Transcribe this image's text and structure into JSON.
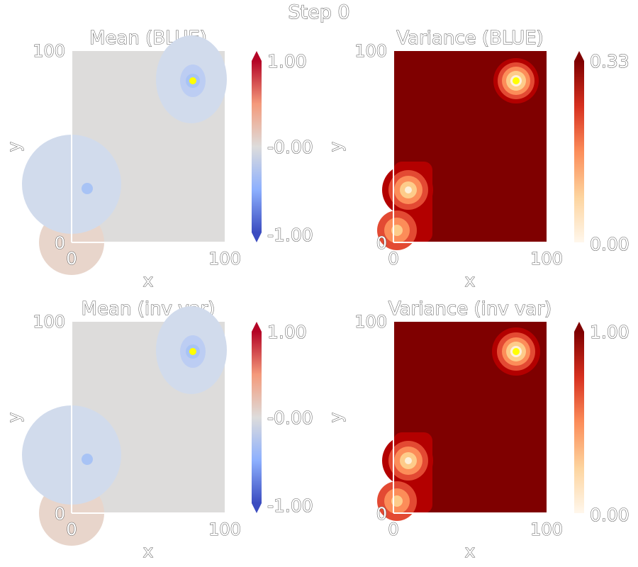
{
  "figure": {
    "suptitle": "Step 0"
  },
  "colors": {
    "coolwarm_neutral": "#dddcdb",
    "coolwarm_pos": "#b40426",
    "coolwarm_neg": "#3b4cc0",
    "orrd_high": "#7f0000",
    "orrd_low": "#fff7ec",
    "marker": "#ffff00"
  },
  "chart_data": [
    {
      "type": "heatmap",
      "title": "Mean (BLUE)",
      "xlabel": "x",
      "ylabel": "y",
      "xlim": [
        0,
        100
      ],
      "ylim": [
        0,
        100
      ],
      "xticks": [
        "0",
        "100"
      ],
      "yticks": [
        "0",
        "100"
      ],
      "colormap": "coolwarm",
      "colorbar": {
        "range": [
          -1.0,
          1.0
        ],
        "ticks": [
          "1.00",
          "-0.00",
          "-1.00"
        ],
        "extend": "both"
      },
      "features": [
        {
          "kind": "negative-bump",
          "x": 80,
          "y": 84,
          "value": -0.25
        },
        {
          "kind": "negative-bump",
          "x": 10,
          "y": 28,
          "value": -0.15
        },
        {
          "kind": "positive-bump",
          "x": 0,
          "y": 0,
          "value": 0.06
        }
      ],
      "marker": {
        "x": 80,
        "y": 84
      }
    },
    {
      "type": "heatmap",
      "title": "Variance (BLUE)",
      "xlabel": "x",
      "ylabel": "y",
      "xlim": [
        0,
        100
      ],
      "ylim": [
        0,
        100
      ],
      "xticks": [
        "0",
        "100"
      ],
      "yticks": [
        "0",
        "100"
      ],
      "colormap": "OrRd",
      "colorbar": {
        "range": [
          0.0,
          0.33
        ],
        "ticks": [
          "0.33",
          "0.00"
        ],
        "extend": "max"
      },
      "baseline": 0.33,
      "features": [
        {
          "kind": "low-variance-well",
          "x": 80,
          "y": 84,
          "value": 0.0
        },
        {
          "kind": "low-variance-well",
          "x": 10,
          "y": 28,
          "value": 0.05
        },
        {
          "kind": "low-variance-well",
          "x": 3,
          "y": 7,
          "value": 0.08
        }
      ],
      "marker": {
        "x": 80,
        "y": 84
      }
    },
    {
      "type": "heatmap",
      "title": "Mean (inv var)",
      "xlabel": "x",
      "ylabel": "y",
      "xlim": [
        0,
        100
      ],
      "ylim": [
        0,
        100
      ],
      "xticks": [
        "0",
        "100"
      ],
      "yticks": [
        "0",
        "100"
      ],
      "colormap": "coolwarm",
      "colorbar": {
        "range": [
          -1.0,
          1.0
        ],
        "ticks": [
          "1.00",
          "-0.00",
          "-1.00"
        ],
        "extend": "both"
      },
      "features": [
        {
          "kind": "negative-bump",
          "x": 80,
          "y": 84,
          "value": -0.25
        },
        {
          "kind": "negative-bump",
          "x": 10,
          "y": 28,
          "value": -0.15
        },
        {
          "kind": "positive-bump",
          "x": 0,
          "y": 0,
          "value": 0.06
        }
      ],
      "marker": {
        "x": 80,
        "y": 84
      }
    },
    {
      "type": "heatmap",
      "title": "Variance (inv var)",
      "xlabel": "x",
      "ylabel": "y",
      "xlim": [
        0,
        100
      ],
      "ylim": [
        0,
        100
      ],
      "xticks": [
        "0",
        "100"
      ],
      "yticks": [
        "0",
        "100"
      ],
      "colormap": "OrRd",
      "colorbar": {
        "range": [
          0.0,
          1.0
        ],
        "ticks": [
          "1.00",
          "0.00"
        ],
        "extend": "max"
      },
      "baseline": 1.0,
      "features": [
        {
          "kind": "low-variance-well",
          "x": 80,
          "y": 84,
          "value": 0.0
        },
        {
          "kind": "low-variance-well",
          "x": 10,
          "y": 28,
          "value": 0.15
        },
        {
          "kind": "low-variance-well",
          "x": 3,
          "y": 7,
          "value": 0.25
        }
      ],
      "marker": {
        "x": 80,
        "y": 84
      }
    }
  ]
}
